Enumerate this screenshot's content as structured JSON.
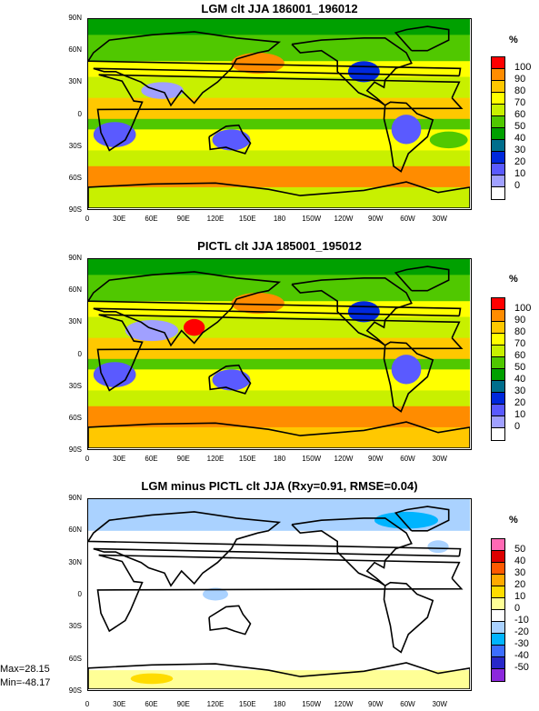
{
  "lat_labels": [
    "90N",
    "60N",
    "30N",
    "0",
    "30S",
    "60S",
    "90S"
  ],
  "lon_labels": [
    "0",
    "30E",
    "60E",
    "90E",
    "120E",
    "150E",
    "180",
    "150W",
    "120W",
    "90W",
    "60W",
    "30W"
  ],
  "panels": [
    {
      "title": "LGM clt JJA 186001_196012",
      "unit": "%",
      "levels": [
        "100",
        "90",
        "80",
        "70",
        "60",
        "50",
        "40",
        "30",
        "20",
        "10",
        "0"
      ],
      "colors": [
        "#ff0000",
        "#ff8c00",
        "#ffc800",
        "#ffff00",
        "#c8f000",
        "#50c800",
        "#00a000",
        "#006e8c",
        "#0028dc",
        "#5a5aff",
        "#a0a0ff",
        "#ffffff"
      ],
      "bands": [
        {
          "lat": [
            90,
            75
          ],
          "color": "#00a000"
        },
        {
          "lat": [
            75,
            50
          ],
          "color": "#50c800"
        },
        {
          "lat": [
            50,
            35
          ],
          "color": "#ffff00"
        },
        {
          "lat": [
            35,
            15
          ],
          "color": "#c8f000"
        },
        {
          "lat": [
            15,
            -5
          ],
          "color": "#ffc800"
        },
        {
          "lat": [
            -5,
            -15
          ],
          "color": "#50c800"
        },
        {
          "lat": [
            -15,
            -35
          ],
          "color": "#ffff00"
        },
        {
          "lat": [
            -35,
            -50
          ],
          "color": "#c8f000"
        },
        {
          "lat": [
            -50,
            -70
          ],
          "color": "#ff8c00"
        },
        {
          "lat": [
            -70,
            -90
          ],
          "color": "#c8f000"
        }
      ],
      "patches": [
        {
          "lon": 160,
          "lat": 48,
          "rx": 25,
          "ry": 10,
          "color": "#ff8c00"
        },
        {
          "lon": 70,
          "lat": 22,
          "rx": 20,
          "ry": 8,
          "color": "#a0a0ff"
        },
        {
          "lon": 25,
          "lat": -20,
          "rx": 20,
          "ry": 12,
          "color": "#5a5aff"
        },
        {
          "lon": -60,
          "lat": -15,
          "rx": 14,
          "ry": 14,
          "color": "#5a5aff"
        },
        {
          "lon": 135,
          "lat": -25,
          "rx": 18,
          "ry": 10,
          "color": "#5a5aff"
        },
        {
          "lon": -100,
          "lat": 40,
          "rx": 15,
          "ry": 10,
          "color": "#0028dc"
        },
        {
          "lon": -20,
          "lat": -25,
          "rx": 18,
          "ry": 8,
          "color": "#50c800"
        }
      ]
    },
    {
      "title": "PICTL clt JJA 185001_195012",
      "unit": "%",
      "levels": [
        "100",
        "90",
        "80",
        "70",
        "60",
        "50",
        "40",
        "30",
        "20",
        "10",
        "0"
      ],
      "colors": [
        "#ff0000",
        "#ff8c00",
        "#ffc800",
        "#ffff00",
        "#c8f000",
        "#50c800",
        "#00a000",
        "#006e8c",
        "#0028dc",
        "#5a5aff",
        "#a0a0ff",
        "#ffffff"
      ],
      "bands": [
        {
          "lat": [
            90,
            75
          ],
          "color": "#00a000"
        },
        {
          "lat": [
            75,
            50
          ],
          "color": "#50c800"
        },
        {
          "lat": [
            50,
            35
          ],
          "color": "#ffff00"
        },
        {
          "lat": [
            35,
            15
          ],
          "color": "#c8f000"
        },
        {
          "lat": [
            15,
            -5
          ],
          "color": "#ffc800"
        },
        {
          "lat": [
            -5,
            -15
          ],
          "color": "#50c800"
        },
        {
          "lat": [
            -15,
            -35
          ],
          "color": "#ffff00"
        },
        {
          "lat": [
            -35,
            -50
          ],
          "color": "#c8f000"
        },
        {
          "lat": [
            -50,
            -70
          ],
          "color": "#ff8c00"
        },
        {
          "lat": [
            -70,
            -90
          ],
          "color": "#ffc800"
        }
      ],
      "patches": [
        {
          "lon": 160,
          "lat": 48,
          "rx": 25,
          "ry": 10,
          "color": "#ff8c00"
        },
        {
          "lon": 60,
          "lat": 22,
          "rx": 25,
          "ry": 10,
          "color": "#a0a0ff"
        },
        {
          "lon": 25,
          "lat": -20,
          "rx": 20,
          "ry": 12,
          "color": "#5a5aff"
        },
        {
          "lon": -60,
          "lat": -15,
          "rx": 14,
          "ry": 14,
          "color": "#5a5aff"
        },
        {
          "lon": 135,
          "lat": -25,
          "rx": 18,
          "ry": 10,
          "color": "#5a5aff"
        },
        {
          "lon": -100,
          "lat": 40,
          "rx": 15,
          "ry": 10,
          "color": "#0028dc"
        },
        {
          "lon": 100,
          "lat": 25,
          "rx": 10,
          "ry": 8,
          "color": "#ff0000"
        }
      ]
    },
    {
      "title": "LGM minus PICTL clt JJA (Rxy=0.91, RMSE=0.04)",
      "unit": "%",
      "levels": [
        "50",
        "40",
        "30",
        "20",
        "10",
        "0",
        "-10",
        "-20",
        "-30",
        "-40",
        "-50"
      ],
      "colors": [
        "#ff69b4",
        "#dc0000",
        "#ff5a00",
        "#ffaa00",
        "#ffdc00",
        "#ffff96",
        "#ffffff",
        "#aad2ff",
        "#00b4ff",
        "#3c6eff",
        "#2828c8",
        "#8c28dc"
      ],
      "bands": [
        {
          "lat": [
            90,
            60
          ],
          "color": "#aad2ff"
        },
        {
          "lat": [
            60,
            -62
          ],
          "color": "#ffffff"
        },
        {
          "lat": [
            -62,
            -72
          ],
          "color": "#ffffff"
        },
        {
          "lat": [
            -72,
            -90
          ],
          "color": "#ffff96"
        }
      ],
      "patches": [
        {
          "lon": -60,
          "lat": 70,
          "rx": 30,
          "ry": 8,
          "color": "#00b4ff"
        },
        {
          "lon": 120,
          "lat": 0,
          "rx": 12,
          "ry": 6,
          "color": "#aad2ff"
        },
        {
          "lon": -30,
          "lat": 45,
          "rx": 10,
          "ry": 6,
          "color": "#aad2ff"
        },
        {
          "lon": 60,
          "lat": -80,
          "rx": 20,
          "ry": 5,
          "color": "#ffdc00"
        }
      ],
      "max_text": "Max=28.15",
      "min_text": "Min=-48.17"
    }
  ]
}
